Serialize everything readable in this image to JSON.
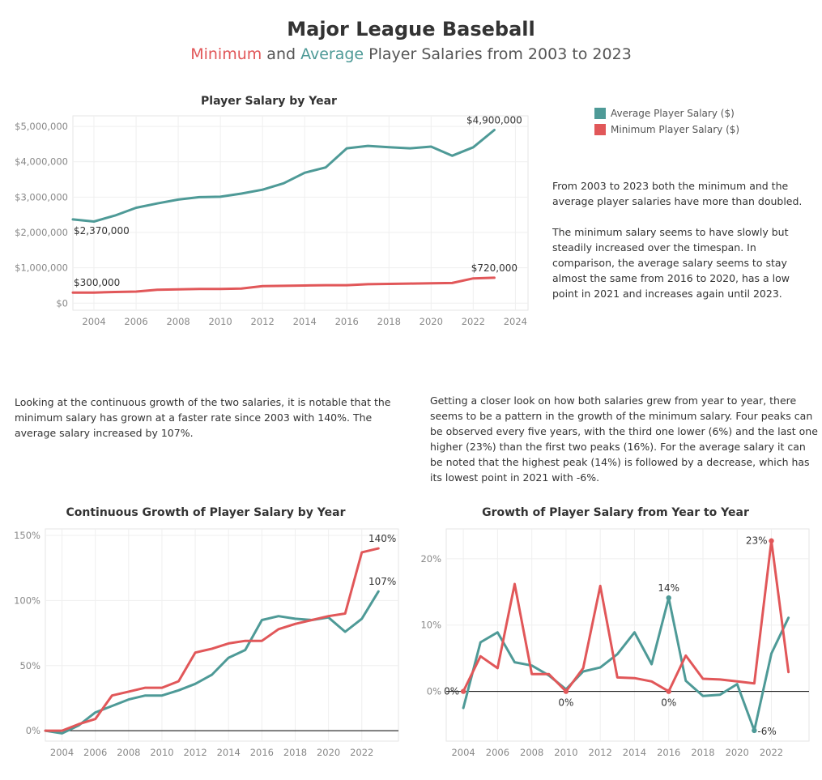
{
  "header": {
    "title": "Major League Baseball",
    "subtitle_min": "Minimum",
    "subtitle_and": " and ",
    "subtitle_avg": "Average",
    "subtitle_rest": " Player Salaries from 2003 to 2023"
  },
  "legend": [
    {
      "label": "Average Player Salary ($)",
      "color": "#4e9a97"
    },
    {
      "label": "Minimum Player Salary ($)",
      "color": "#e15759"
    }
  ],
  "text": {
    "right_top": "From 2003 to 2023 both the minimum and the\naverage player salaries have more than doubled.\n\nThe minimum salary seems to have slowly but\nsteadily increased over the timespan. In\ncomparison, the average salary seems to stay\nalmost the same from 2016 to 2020, has a low\npoint in 2021 and increases again until 2023.",
    "left_mid": "Looking at the continuous growth of the two salaries, it is notable that the\nminimum salary has grown at a faster rate since 2003 with 140%. The\naverage salary increased by 107%.",
    "right_mid": "Getting a closer look on how both salaries grew from year to year, there\nseems to be a pattern in the growth of the minimum salary. Four peaks can\nbe observed every five years, with the third one lower (6%)  and the last one\nhigher (23%)  than the first two peaks (16%). For the average salary it can\nbe noted that the highest peak (14%) is followed by a decrease, which has\nits lowest point in 2021 with -6%."
  },
  "colors": {
    "average": "#4e9a97",
    "minimum": "#e15759"
  },
  "chart_data": [
    {
      "type": "line",
      "title": "Player Salary by Year",
      "x": [
        2003,
        2004,
        2005,
        2006,
        2007,
        2008,
        2009,
        2010,
        2011,
        2012,
        2013,
        2014,
        2015,
        2016,
        2017,
        2018,
        2019,
        2020,
        2021,
        2022,
        2023
      ],
      "xlim": [
        2003,
        2024.6
      ],
      "xticks": [
        2004,
        2006,
        2008,
        2010,
        2012,
        2014,
        2016,
        2018,
        2020,
        2022,
        2024
      ],
      "ylim": [
        -200000,
        5300000
      ],
      "yticks": [
        0,
        1000000,
        2000000,
        3000000,
        4000000,
        5000000
      ],
      "ytick_labels": [
        "$0",
        "$1,000,000",
        "$2,000,000",
        "$3,000,000",
        "$4,000,000",
        "$5,000,000"
      ],
      "series": [
        {
          "name": "Average Player Salary ($)",
          "color": "#4e9a97",
          "values": [
            2370000,
            2310000,
            2480000,
            2700000,
            2820000,
            2930000,
            3000000,
            3010000,
            3100000,
            3210000,
            3390000,
            3690000,
            3840000,
            4380000,
            4450000,
            4410000,
            4380000,
            4430000,
            4170000,
            4410000,
            4900000
          ]
        },
        {
          "name": "Minimum Player Salary ($)",
          "color": "#e15759",
          "values": [
            300000,
            300000,
            316000,
            327000,
            380000,
            390000,
            400000,
            400000,
            414000,
            480000,
            490000,
            500000,
            507500,
            507500,
            535000,
            545000,
            555000,
            563500,
            570500,
            700000,
            720000
          ]
        }
      ],
      "annotations": [
        {
          "series": 0,
          "index": 0,
          "text": "$2,370,000",
          "pos": "below"
        },
        {
          "series": 0,
          "index": 20,
          "text": "$4,900,000",
          "pos": "above"
        },
        {
          "series": 1,
          "index": 0,
          "text": "$300,000",
          "pos": "above"
        },
        {
          "series": 1,
          "index": 20,
          "text": "$720,000",
          "pos": "above"
        }
      ]
    },
    {
      "type": "line",
      "title": "Continuous Growth of Player Salary by Year",
      "x": [
        2003,
        2004,
        2005,
        2006,
        2007,
        2008,
        2009,
        2010,
        2011,
        2012,
        2013,
        2014,
        2015,
        2016,
        2017,
        2018,
        2019,
        2020,
        2021,
        2022,
        2023
      ],
      "xlim": [
        2003,
        2024.2
      ],
      "xticks": [
        2004,
        2006,
        2008,
        2010,
        2012,
        2014,
        2016,
        2018,
        2020,
        2022
      ],
      "ylim": [
        -8,
        155
      ],
      "yticks": [
        0,
        50,
        100,
        150
      ],
      "ytick_labels": [
        "0%",
        "50%",
        "100%",
        "150%"
      ],
      "zero_line": true,
      "series": [
        {
          "name": "Average",
          "color": "#4e9a97",
          "values": [
            0,
            -2,
            4,
            14,
            19,
            24,
            27,
            27,
            31,
            36,
            43,
            56,
            62,
            85,
            88,
            86,
            85,
            87,
            76,
            86,
            107
          ]
        },
        {
          "name": "Minimum",
          "color": "#e15759",
          "values": [
            0,
            0,
            5,
            9,
            27,
            30,
            33,
            33,
            38,
            60,
            63,
            67,
            69,
            69,
            78,
            82,
            85,
            88,
            90,
            137,
            140
          ]
        }
      ],
      "annotations": [
        {
          "series": 1,
          "index": 20,
          "text": "140%",
          "pos": "above"
        },
        {
          "series": 0,
          "index": 20,
          "text": "107%",
          "pos": "above"
        }
      ]
    },
    {
      "type": "line",
      "title": "Growth of Player Salary from Year to Year",
      "x": [
        2004,
        2005,
        2006,
        2007,
        2008,
        2009,
        2010,
        2011,
        2012,
        2013,
        2014,
        2015,
        2016,
        2017,
        2018,
        2019,
        2020,
        2021,
        2022,
        2023
      ],
      "xlim": [
        2003,
        2024.2
      ],
      "xticks": [
        2004,
        2006,
        2008,
        2010,
        2012,
        2014,
        2016,
        2018,
        2020,
        2022
      ],
      "ylim": [
        -7.5,
        24.5
      ],
      "yticks": [
        0,
        10,
        20
      ],
      "ytick_labels": [
        "0%",
        "10%",
        "20%"
      ],
      "zero_line": true,
      "series": [
        {
          "name": "Average",
          "color": "#4e9a97",
          "values": [
            -2.5,
            7.4,
            8.9,
            4.4,
            3.9,
            2.4,
            0.3,
            3.0,
            3.6,
            5.6,
            8.9,
            4.1,
            14.1,
            1.6,
            -0.7,
            -0.5,
            1.1,
            -5.9,
            5.7,
            11.1
          ]
        },
        {
          "name": "Minimum",
          "color": "#e15759",
          "values": [
            0,
            5.3,
            3.5,
            16.2,
            2.6,
            2.6,
            0,
            3.5,
            15.9,
            2.1,
            2.0,
            1.5,
            0,
            5.4,
            1.9,
            1.8,
            1.5,
            1.2,
            22.7,
            2.9
          ]
        }
      ],
      "annotations": [
        {
          "series": 1,
          "index": 0,
          "text": "0%",
          "pos": "left",
          "dot": true
        },
        {
          "series": 1,
          "index": 6,
          "text": "0%",
          "pos": "below",
          "dot": true
        },
        {
          "series": 1,
          "index": 12,
          "text": "0%",
          "pos": "below",
          "dot": true
        },
        {
          "series": 0,
          "index": 12,
          "text": "14%",
          "pos": "above",
          "dot": true
        },
        {
          "series": 1,
          "index": 18,
          "text": "23%",
          "pos": "left",
          "dot": true
        },
        {
          "series": 0,
          "index": 17,
          "text": "-6%",
          "pos": "right",
          "dot": true
        }
      ]
    }
  ]
}
